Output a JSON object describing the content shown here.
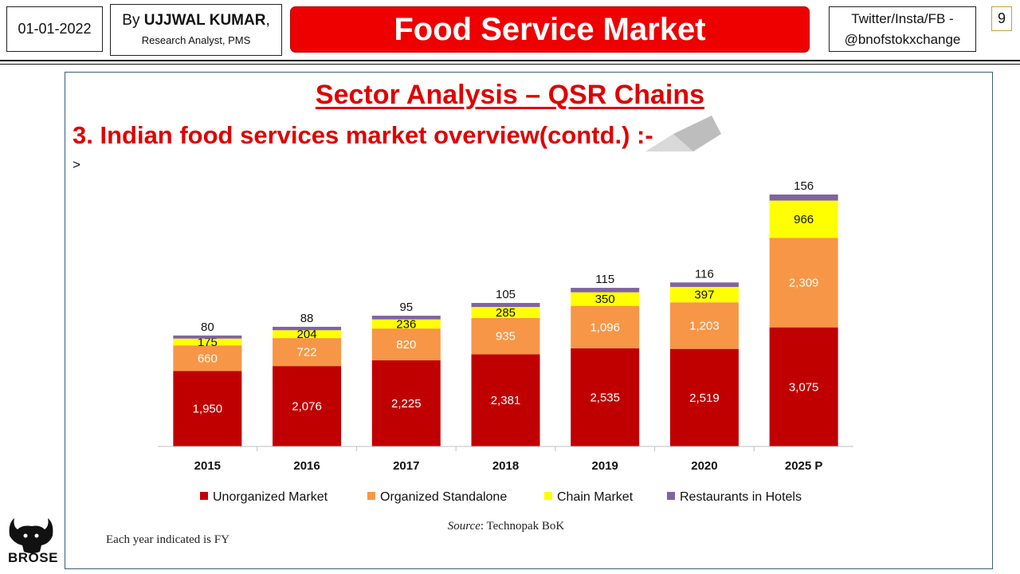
{
  "header": {
    "date": "01-01-2022",
    "author_prefix": "By ",
    "author_name": "UJJWAL KUMAR",
    "author_suffix": ",",
    "author_role": "Research Analyst, PMS",
    "title": "Food Service Market",
    "social_line1": "Twitter/Insta/FB  -",
    "social_line2": "@bnofstokxchange",
    "page_number": "9"
  },
  "section_title": "Sector Analysis – QSR Chains",
  "subtitle": "3. Indian food services market overview(contd.) :-",
  "bullet": ">",
  "source_label": "Source",
  "source_text": ": Technopak BoK",
  "note": "Each year indicated is FY",
  "logo_text": "BROSE",
  "colors": {
    "accent_red": "#ee0000",
    "unorganized": "#c00000",
    "organized": "#f79646",
    "chain": "#ffff00",
    "hotels": "#8064a2"
  },
  "chart_data": {
    "type": "bar",
    "stacked": true,
    "categories": [
      "2015",
      "2016",
      "2017",
      "2018",
      "2019",
      "2020",
      "2025 P"
    ],
    "series": [
      {
        "name": "Unorganized Market",
        "color": "#c00000",
        "values": [
          1950,
          2076,
          2225,
          2381,
          2535,
          2519,
          3075
        ],
        "labels": [
          "1,950",
          "2,076",
          "2,225",
          "2,381",
          "2,535",
          "2,519",
          "3,075"
        ]
      },
      {
        "name": "Organized Standalone",
        "color": "#f79646",
        "values": [
          660,
          722,
          820,
          935,
          1096,
          1203,
          2309
        ],
        "labels": [
          "660",
          "722",
          "820",
          "935",
          "1,096",
          "1,203",
          "2,309"
        ]
      },
      {
        "name": "Chain Market",
        "color": "#ffff00",
        "values": [
          175,
          204,
          236,
          285,
          350,
          397,
          966
        ],
        "labels": [
          "175",
          "204",
          "236",
          "285",
          "350",
          "397",
          "966"
        ]
      },
      {
        "name": "Restaurants in Hotels",
        "color": "#8064a2",
        "values": [
          80,
          88,
          95,
          105,
          115,
          116,
          156
        ],
        "labels": [
          "80",
          "88",
          "95",
          "105",
          "115",
          "116",
          "156"
        ]
      }
    ],
    "legend_position": "bottom",
    "grid": false
  }
}
